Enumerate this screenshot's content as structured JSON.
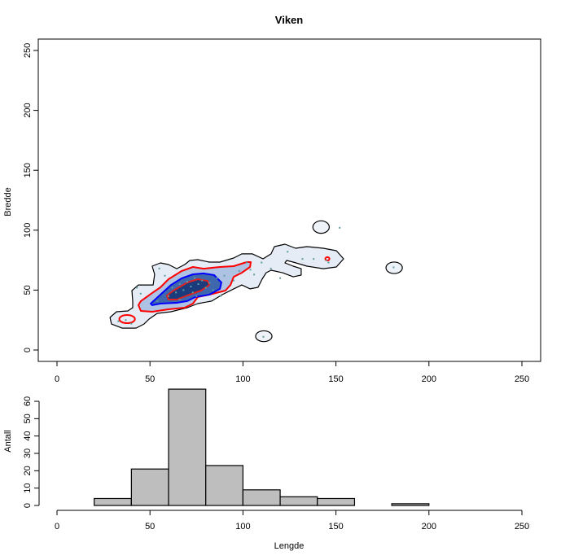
{
  "chart_data": [
    {
      "type": "contour",
      "title": "Viken",
      "xlabel": "",
      "ylabel": "Bredde",
      "xlim": [
        -10,
        260
      ],
      "ylim": [
        -10,
        260
      ],
      "xticks": [
        0,
        50,
        100,
        150,
        200,
        250
      ],
      "yticks": [
        0,
        50,
        100,
        150,
        200,
        250
      ],
      "colors": {
        "outer": "#000000",
        "level2": "#ff0000",
        "level3": "#0000ff",
        "level4": "#dd2222",
        "points": "#5f9ea0"
      },
      "contours": [
        {
          "level": "outer",
          "closed": true,
          "points": [
            [
              51.2,
              70
            ],
            [
              55.6,
              72.7
            ],
            [
              60,
              71.3
            ],
            [
              64.4,
              67.9
            ],
            [
              68.7,
              71.3
            ],
            [
              71.4,
              74.7
            ],
            [
              75.7,
              75.4
            ],
            [
              81.9,
              73.4
            ],
            [
              87.6,
              73.4
            ],
            [
              95,
              76.8
            ],
            [
              99.4,
              80.2
            ],
            [
              105.1,
              80.2
            ],
            [
              110.8,
              76.1
            ],
            [
              115.1,
              80.2
            ],
            [
              116.9,
              86.3
            ],
            [
              122.6,
              88.3
            ],
            [
              128.3,
              84.9
            ],
            [
              134.4,
              86.3
            ],
            [
              143.2,
              84.9
            ],
            [
              150.2,
              82.9
            ],
            [
              154.1,
              76.1
            ],
            [
              150.2,
              69.3
            ],
            [
              143.2,
              67.9
            ],
            [
              134.4,
              70
            ],
            [
              127,
              73.4
            ],
            [
              123.5,
              74.7
            ],
            [
              122.6,
              72.7
            ],
            [
              127,
              70
            ],
            [
              131.3,
              67.9
            ],
            [
              131.3,
              62.5
            ],
            [
              127,
              61.1
            ],
            [
              121.3,
              64.5
            ],
            [
              115.1,
              66.6
            ],
            [
              112.5,
              64.5
            ],
            [
              110.3,
              59.1
            ],
            [
              108.1,
              52.3
            ],
            [
              103.8,
              51
            ],
            [
              99.4,
              54.3
            ],
            [
              95,
              51
            ],
            [
              88.9,
              46.2
            ],
            [
              83.2,
              40.8
            ],
            [
              75.7,
              38.7
            ],
            [
              70.1,
              35.3
            ],
            [
              61.3,
              31.9
            ],
            [
              53.9,
              30.6
            ],
            [
              49.5,
              25.8
            ],
            [
              46.8,
              21.7
            ],
            [
              42.5,
              18.3
            ],
            [
              35,
              18.3
            ],
            [
              29.3,
              21.7
            ],
            [
              28.5,
              27.2
            ],
            [
              32,
              31.9
            ],
            [
              38.1,
              32.6
            ],
            [
              40.7,
              35.3
            ],
            [
              40.7,
              40.8
            ],
            [
              40.3,
              49.6
            ],
            [
              43.8,
              54.3
            ],
            [
              51.7,
              54.3
            ],
            [
              52.5,
              63.2
            ]
          ]
        },
        {
          "level": "level2",
          "closed": true,
          "points": [
            [
              43.8,
              37.4
            ],
            [
              45.1,
              40.8
            ],
            [
              51.2,
              47.6
            ],
            [
              55.6,
              52.3
            ],
            [
              60,
              59.1
            ],
            [
              67,
              65.9
            ],
            [
              73.1,
              69.3
            ],
            [
              78.8,
              67.9
            ],
            [
              87.6,
              69.3
            ],
            [
              95,
              70
            ],
            [
              102,
              73.4
            ],
            [
              104.2,
              73.4
            ],
            [
              103.8,
              69.3
            ],
            [
              99.4,
              64.5
            ],
            [
              95,
              61.1
            ],
            [
              93.3,
              54.3
            ],
            [
              90.6,
              49.6
            ],
            [
              81.9,
              46.2
            ],
            [
              75.7,
              44.2
            ],
            [
              73.1,
              38.7
            ],
            [
              68.7,
              35.3
            ],
            [
              60,
              34
            ],
            [
              51.2,
              31.9
            ],
            [
              45.1,
              32.6
            ]
          ]
        },
        {
          "level": "level3",
          "closed": true,
          "points": [
            [
              50.4,
              38.7
            ],
            [
              55.6,
              46.2
            ],
            [
              61.3,
              54.3
            ],
            [
              67,
              59.8
            ],
            [
              73.1,
              63.2
            ],
            [
              78.8,
              63.9
            ],
            [
              84.5,
              62.5
            ],
            [
              88.4,
              56.4
            ],
            [
              87.6,
              51
            ],
            [
              81.9,
              46.2
            ],
            [
              74.4,
              44.2
            ],
            [
              70.1,
              40.8
            ],
            [
              64.4,
              39.4
            ],
            [
              55.6,
              38.7
            ],
            [
              51.2,
              37.4
            ]
          ]
        },
        {
          "level": "level4",
          "closed": true,
          "points": [
            [
              59.1,
              45.5
            ],
            [
              62.6,
              49.6
            ],
            [
              70.1,
              56.4
            ],
            [
              75.7,
              59.1
            ],
            [
              81,
              57.7
            ],
            [
              81.9,
              54.3
            ],
            [
              77.5,
              49.6
            ],
            [
              70.1,
              45.5
            ],
            [
              64.4,
              42.1
            ],
            [
              60,
              42.1
            ]
          ]
        }
      ],
      "ellipses": [
        {
          "level": "outer",
          "cx": 142,
          "cy": 102.6,
          "rx": 4.4,
          "ry": 5.2
        },
        {
          "level": "outer",
          "cx": 181.3,
          "cy": 68.6,
          "rx": 4.4,
          "ry": 4.8
        },
        {
          "level": "outer",
          "cx": 111.2,
          "cy": 11.5,
          "rx": 4.4,
          "ry": 4.5
        },
        {
          "level": "level2",
          "cx": 37.7,
          "cy": 25.8,
          "rx": 4.2,
          "ry": 3.4
        },
        {
          "level": "level2",
          "cx": 145.4,
          "cy": 76.1,
          "rx": 1.1,
          "ry": 1.4
        }
      ],
      "points": [
        [
          33,
          24
        ],
        [
          37,
          25
        ],
        [
          40,
          22
        ],
        [
          43,
          52
        ],
        [
          45,
          47
        ],
        [
          55,
          68
        ],
        [
          58,
          62
        ],
        [
          60,
          45
        ],
        [
          62,
          52
        ],
        [
          64,
          48
        ],
        [
          66,
          55
        ],
        [
          68,
          50
        ],
        [
          70,
          57
        ],
        [
          72,
          53
        ],
        [
          73,
          48
        ],
        [
          74,
          60
        ],
        [
          76,
          55
        ],
        [
          78,
          58
        ],
        [
          80,
          52
        ],
        [
          82,
          56
        ],
        [
          84,
          50
        ],
        [
          86,
          60
        ],
        [
          88,
          45
        ],
        [
          90,
          62
        ],
        [
          95,
          58
        ],
        [
          98,
          66
        ],
        [
          102,
          73
        ],
        [
          104,
          67
        ],
        [
          106,
          63
        ],
        [
          110,
          73
        ],
        [
          115,
          68
        ],
        [
          120,
          60
        ],
        [
          124,
          82
        ],
        [
          132,
          76
        ],
        [
          138,
          76
        ],
        [
          145,
          75
        ],
        [
          146,
          73
        ],
        [
          152,
          102
        ],
        [
          181,
          69
        ],
        [
          111,
          11
        ],
        [
          66,
          42
        ],
        [
          75,
          45
        ],
        [
          54,
          41
        ]
      ]
    },
    {
      "type": "bar",
      "title": "",
      "xlabel": "Lengde",
      "ylabel": "Antall",
      "xlim": [
        0,
        250
      ],
      "ylim": [
        0,
        67
      ],
      "xticks": [
        0,
        50,
        100,
        150,
        200,
        250
      ],
      "yticks": [
        0,
        10,
        20,
        30,
        40,
        50,
        60
      ],
      "bins": [
        [
          20,
          40
        ],
        [
          40,
          60
        ],
        [
          60,
          80
        ],
        [
          80,
          100
        ],
        [
          100,
          120
        ],
        [
          120,
          140
        ],
        [
          140,
          160
        ],
        [
          160,
          180
        ],
        [
          180,
          200
        ]
      ],
      "values": [
        4,
        21,
        67,
        23,
        9,
        5,
        4,
        0,
        1
      ],
      "bar_color": "#bebebe"
    }
  ]
}
